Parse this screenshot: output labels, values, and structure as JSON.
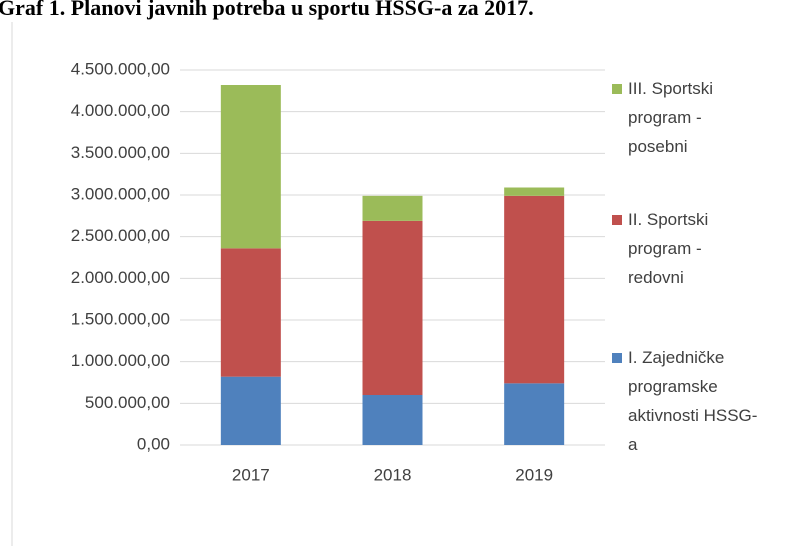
{
  "chart_data": {
    "type": "stacked_bar",
    "title": "Graf 1. Planovi javnih potreba u sportu HSSG-a za 2017.",
    "categories": [
      "2017",
      "2018",
      "2019"
    ],
    "series": [
      {
        "name": "I. Zajedničke programske aktivnosti HSSG-a",
        "color": "#4f81bd",
        "values": [
          820000,
          600000,
          740000
        ]
      },
      {
        "name": "II. Sportski program - redovni",
        "color": "#c0504d",
        "values": [
          1540000,
          2090000,
          2250000
        ]
      },
      {
        "name": "III. Sportski program - posebni",
        "color": "#9bbb59",
        "values": [
          1960000,
          300000,
          100000
        ]
      }
    ],
    "ylim": [
      0,
      4500000
    ],
    "yticks": [
      {
        "value": 0,
        "label": "0,00"
      },
      {
        "value": 500000,
        "label": "500.000,00"
      },
      {
        "value": 1000000,
        "label": "1.000.000,00"
      },
      {
        "value": 1500000,
        "label": "1.500.000,00"
      },
      {
        "value": 2000000,
        "label": "2.000.000,00"
      },
      {
        "value": 2500000,
        "label": "2.500.000,00"
      },
      {
        "value": 3000000,
        "label": "3.000.000,00"
      },
      {
        "value": 3500000,
        "label": "3.500.000,00"
      },
      {
        "value": 4000000,
        "label": "4.000.000,00"
      },
      {
        "value": 4500000,
        "label": "4.500.000,00"
      }
    ],
    "grid": true,
    "legend": "right"
  }
}
